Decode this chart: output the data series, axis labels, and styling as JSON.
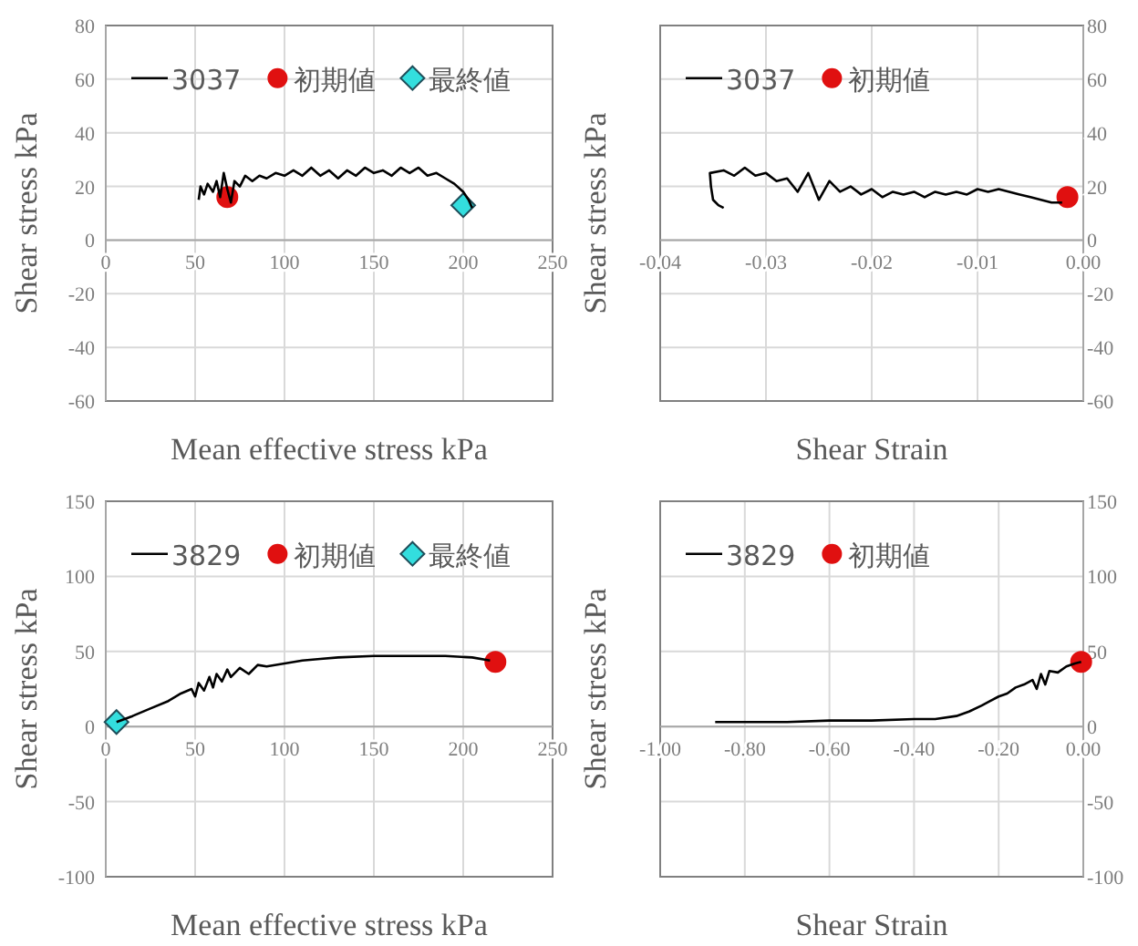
{
  "chart_data": [
    {
      "type": "line",
      "xlabel": "Mean effective stress kPa",
      "ylabel": "Shear stress kPa",
      "xlim": [
        0,
        250
      ],
      "ylim": [
        -60,
        80
      ],
      "xticks": [
        0,
        50,
        100,
        150,
        200,
        250
      ],
      "yticks": [
        -60,
        -40,
        -20,
        0,
        20,
        40,
        60,
        80
      ],
      "grid": true,
      "legend": "top",
      "series": [
        {
          "name": "3037",
          "type": "line",
          "color": "#000000",
          "marker": "none",
          "x": [
            52,
            53,
            55,
            57,
            60,
            62,
            64,
            66,
            68,
            70,
            72,
            75,
            78,
            82,
            86,
            90,
            95,
            100,
            105,
            110,
            115,
            120,
            125,
            130,
            135,
            140,
            145,
            150,
            155,
            160,
            165,
            170,
            175,
            180,
            185,
            190,
            195,
            200,
            203,
            205
          ],
          "values": [
            15,
            20,
            17,
            21,
            18,
            22,
            16,
            25,
            19,
            14,
            22,
            20,
            24,
            22,
            24,
            23,
            25,
            24,
            26,
            24,
            27,
            24,
            26,
            23,
            26,
            24,
            27,
            25,
            26,
            24,
            27,
            25,
            27,
            24,
            25,
            23,
            21,
            18,
            15,
            12
          ]
        },
        {
          "name": "初期値",
          "type": "scatter",
          "color": "#e01010",
          "marker": "circle",
          "x": [
            68
          ],
          "values": [
            16
          ]
        },
        {
          "name": "最終値",
          "type": "scatter",
          "color": "#33dede",
          "marker": "diamond",
          "x": [
            200
          ],
          "values": [
            13
          ]
        }
      ]
    },
    {
      "type": "line",
      "xlabel": "Shear Strain",
      "ylabel": "Shear stress kPa",
      "xlim": [
        -0.04,
        0
      ],
      "ylim": [
        -60,
        80
      ],
      "xticks": [
        -0.04,
        -0.03,
        -0.02,
        -0.01,
        {
          "value": 0,
          "label": "0.00"
        }
      ],
      "yticks": [
        -60,
        -40,
        -20,
        0,
        20,
        40,
        60,
        80
      ],
      "grid": true,
      "legend": "top",
      "series": [
        {
          "name": "3037",
          "type": "line",
          "color": "#000000",
          "marker": "none",
          "x": [
            -0.034,
            -0.0345,
            -0.035,
            -0.0352,
            -0.0353,
            -0.034,
            -0.033,
            -0.032,
            -0.031,
            -0.03,
            -0.029,
            -0.028,
            -0.027,
            -0.026,
            -0.025,
            -0.024,
            -0.023,
            -0.022,
            -0.021,
            -0.02,
            -0.019,
            -0.018,
            -0.017,
            -0.016,
            -0.015,
            -0.014,
            -0.013,
            -0.012,
            -0.011,
            -0.01,
            -0.009,
            -0.008,
            -0.007,
            -0.006,
            -0.005,
            -0.004,
            -0.003,
            -0.002
          ],
          "values": [
            12,
            13,
            15,
            20,
            25,
            26,
            24,
            27,
            24,
            25,
            22,
            23,
            18,
            25,
            15,
            22,
            18,
            20,
            17,
            19,
            16,
            18,
            17,
            18,
            16,
            18,
            17,
            18,
            17,
            19,
            18,
            19,
            18,
            17,
            16,
            15,
            14,
            14
          ]
        },
        {
          "name": "初期値",
          "type": "scatter",
          "color": "#e01010",
          "marker": "circle",
          "x": [
            -0.0015
          ],
          "values": [
            16
          ]
        }
      ]
    },
    {
      "type": "line",
      "xlabel": "Mean effective stress kPa",
      "ylabel": "Shear stress kPa",
      "xlim": [
        0,
        250
      ],
      "ylim": [
        -100,
        150
      ],
      "xticks": [
        0,
        50,
        100,
        150,
        200,
        250
      ],
      "yticks": [
        -100,
        -50,
        0,
        50,
        100,
        150
      ],
      "grid": true,
      "legend": "top",
      "series": [
        {
          "name": "3829",
          "type": "line",
          "color": "#000000",
          "marker": "none",
          "x": [
            6,
            15,
            25,
            35,
            42,
            48,
            50,
            52,
            55,
            58,
            60,
            62,
            65,
            68,
            70,
            75,
            80,
            85,
            90,
            100,
            110,
            120,
            130,
            150,
            170,
            190,
            205,
            215
          ],
          "values": [
            3,
            7,
            12,
            17,
            22,
            25,
            20,
            29,
            24,
            33,
            26,
            35,
            30,
            38,
            33,
            39,
            35,
            41,
            40,
            42,
            44,
            45,
            46,
            47,
            47,
            47,
            46,
            44
          ]
        },
        {
          "name": "初期値",
          "type": "scatter",
          "color": "#e01010",
          "marker": "circle",
          "x": [
            218
          ],
          "values": [
            43
          ]
        },
        {
          "name": "最終値",
          "type": "scatter",
          "color": "#33dede",
          "marker": "diamond",
          "x": [
            6
          ],
          "values": [
            3
          ]
        }
      ]
    },
    {
      "type": "line",
      "xlabel": "Shear Strain",
      "ylabel": "Shear stress kPa",
      "xlim": [
        -1,
        0
      ],
      "ylim": [
        -100,
        150
      ],
      "xticks": [
        {
          "value": -1,
          "label": "-1.00"
        },
        {
          "value": -0.8,
          "label": "-0.80"
        },
        {
          "value": -0.6,
          "label": "-0.60"
        },
        {
          "value": -0.4,
          "label": "-0.40"
        },
        {
          "value": -0.2,
          "label": "-0.20"
        },
        {
          "value": 0,
          "label": "0.00"
        }
      ],
      "yticks": [
        -100,
        -50,
        0,
        50,
        100,
        150
      ],
      "grid": true,
      "legend": "top",
      "series": [
        {
          "name": "3829",
          "type": "line",
          "color": "#000000",
          "marker": "none",
          "x": [
            -0.87,
            -0.8,
            -0.7,
            -0.6,
            -0.5,
            -0.4,
            -0.35,
            -0.3,
            -0.27,
            -0.24,
            -0.22,
            -0.2,
            -0.18,
            -0.16,
            -0.14,
            -0.12,
            -0.11,
            -0.1,
            -0.09,
            -0.08,
            -0.06,
            -0.04,
            -0.02,
            -0.005
          ],
          "values": [
            3,
            3,
            3,
            4,
            4,
            5,
            5,
            7,
            10,
            14,
            17,
            20,
            22,
            26,
            28,
            31,
            25,
            35,
            28,
            37,
            36,
            40,
            42,
            43
          ]
        },
        {
          "name": "初期値",
          "type": "scatter",
          "color": "#e01010",
          "marker": "circle",
          "x": [
            -0.005
          ],
          "values": [
            43
          ]
        }
      ]
    }
  ]
}
